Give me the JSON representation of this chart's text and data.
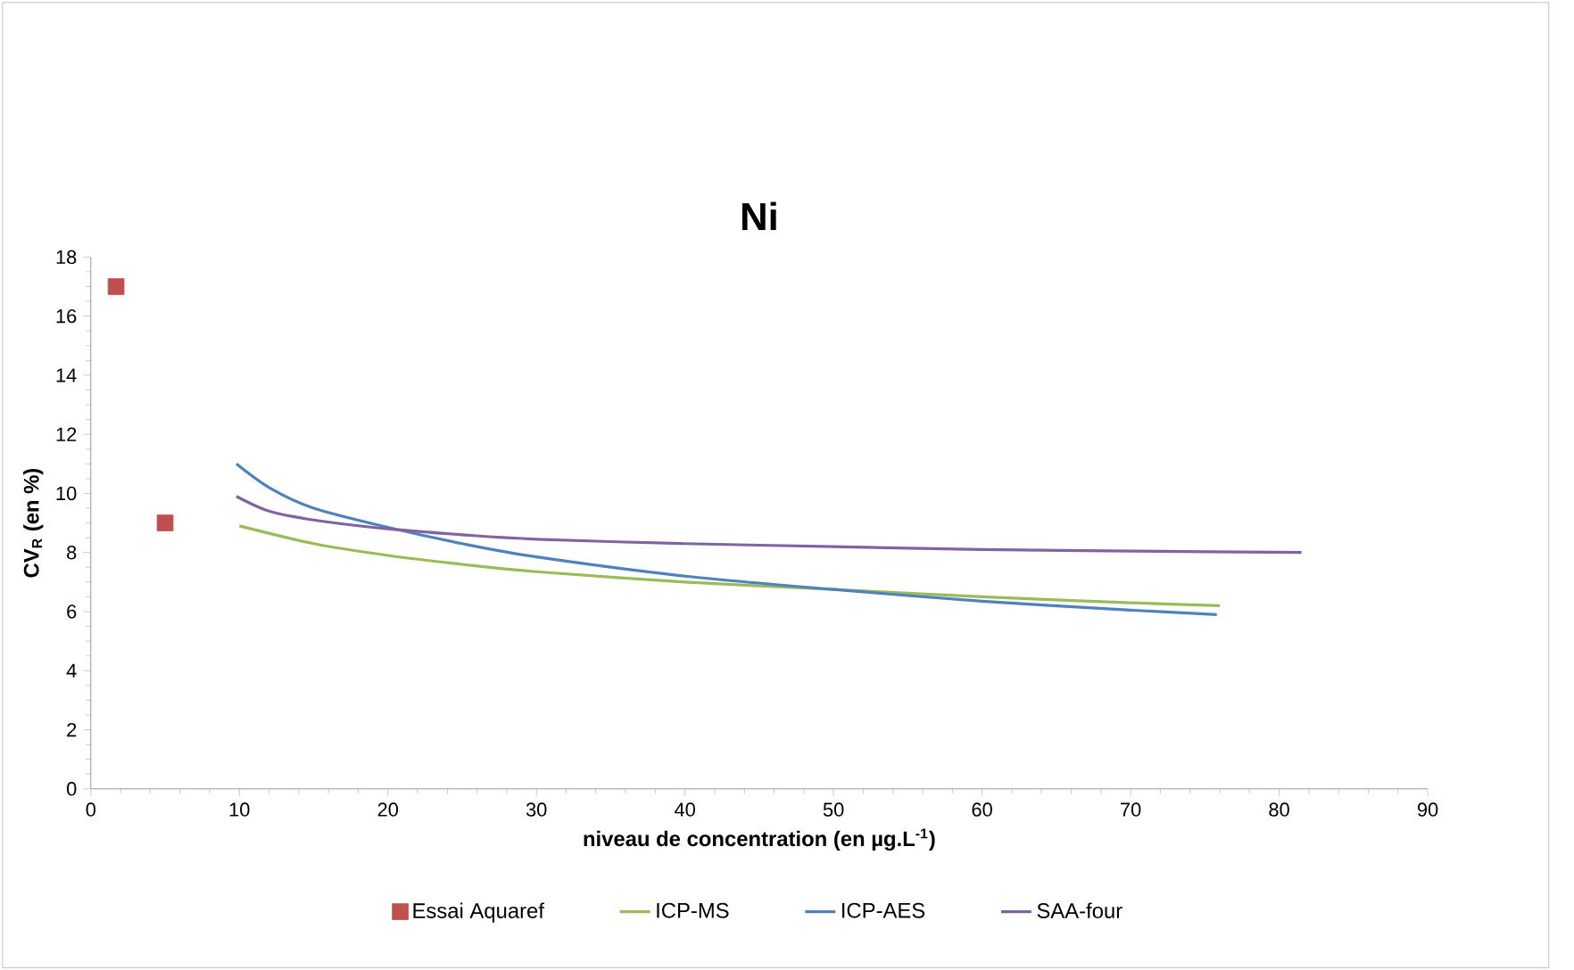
{
  "chart_data": {
    "type": "line",
    "title": "Ni",
    "xlabel": "niveau de concentration (en µg.L$^{-1}$)",
    "ylabel": "CV$_{R}$ (en %)",
    "xlim": [
      0,
      90
    ],
    "xticks": [
      0,
      10,
      20,
      30,
      40,
      50,
      60,
      70,
      80,
      90
    ],
    "ylim": [
      0,
      18
    ],
    "yticks": [
      0,
      2,
      4,
      6,
      8,
      10,
      12,
      14,
      16,
      18
    ],
    "legend": "bottom",
    "marker": "none",
    "line_style": "solid",
    "series": [
      {
        "name": "Essai Aquaref",
        "type": "scatter",
        "marker": "square",
        "color": "#c0504d",
        "x": [
          1.7,
          5
        ],
        "values": [
          17,
          9
        ]
      },
      {
        "name": "ICP-MS",
        "color": "#9bbb59",
        "x": [
          10,
          15,
          20,
          25,
          30,
          40,
          50,
          60,
          70,
          76
        ],
        "values": [
          8.9,
          8.3,
          7.9,
          7.6,
          7.35,
          7.0,
          6.75,
          6.5,
          6.3,
          6.2
        ]
      },
      {
        "name": "ICP-AES",
        "color": "#4f81bd",
        "x": [
          9.8,
          12,
          15,
          20,
          25,
          30,
          40,
          50,
          60,
          70,
          75.8
        ],
        "values": [
          11.0,
          10.2,
          9.5,
          8.85,
          8.3,
          7.85,
          7.2,
          6.75,
          6.35,
          6.05,
          5.9
        ]
      },
      {
        "name": "SAA-four",
        "color": "#8064a2",
        "x": [
          9.8,
          12,
          15,
          20,
          25,
          30,
          40,
          50,
          60,
          70,
          81.5
        ],
        "values": [
          9.9,
          9.4,
          9.1,
          8.8,
          8.6,
          8.45,
          8.3,
          8.2,
          8.1,
          8.05,
          8.0
        ]
      }
    ]
  }
}
